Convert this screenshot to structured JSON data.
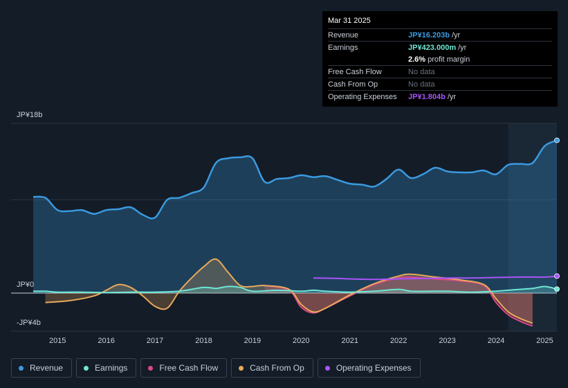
{
  "tooltip": {
    "date": "Mar 31 2025",
    "rows": [
      {
        "label": "Revenue",
        "value": "JP¥16.203b",
        "suffix": "/yr",
        "color": "#3a9ae0"
      },
      {
        "label": "Earnings",
        "value": "JP¥423.000m",
        "suffix": "/yr",
        "color": "#6ee7d4"
      },
      {
        "label": "profit_margin",
        "value": "2.6%",
        "suffix": "profit margin",
        "color": "#ffffff"
      },
      {
        "label": "Free Cash Flow",
        "value": "No data"
      },
      {
        "label": "Cash From Op",
        "value": "No data"
      },
      {
        "label": "Operating Expenses",
        "value": "JP¥1.804b",
        "suffix": "/yr",
        "color": "#a855f7"
      }
    ]
  },
  "legend": [
    {
      "label": "Revenue",
      "color": "#3a9ae0"
    },
    {
      "label": "Earnings",
      "color": "#6ee7d4"
    },
    {
      "label": "Free Cash Flow",
      "color": "#d94a84"
    },
    {
      "label": "Cash From Op",
      "color": "#e8a95c"
    },
    {
      "label": "Operating Expenses",
      "color": "#a855f7"
    }
  ],
  "chart_data": {
    "type": "area",
    "ylim": [
      -4,
      18
    ],
    "y_tick_labels": [
      {
        "label": "JP¥18b",
        "value": 18
      },
      {
        "label": "JP¥0",
        "value": 0
      },
      {
        "label": "-JP¥4b",
        "value": -4
      }
    ],
    "x_ticks": [
      "2015",
      "2016",
      "2017",
      "2018",
      "2019",
      "2020",
      "2021",
      "2022",
      "2023",
      "2024",
      "2025"
    ],
    "x_range": [
      2014.5,
      2025.25
    ],
    "highlight_start": 2024.25,
    "series": [
      {
        "name": "Revenue",
        "color": "#3a9ae0",
        "points": [
          [
            2014.5,
            10.2
          ],
          [
            2014.75,
            10.1
          ],
          [
            2015.0,
            8.8
          ],
          [
            2015.25,
            8.7
          ],
          [
            2015.5,
            8.8
          ],
          [
            2015.75,
            8.4
          ],
          [
            2016.0,
            8.8
          ],
          [
            2016.25,
            8.9
          ],
          [
            2016.5,
            9.1
          ],
          [
            2016.75,
            8.3
          ],
          [
            2017.0,
            8.0
          ],
          [
            2017.25,
            9.9
          ],
          [
            2017.5,
            10.1
          ],
          [
            2017.75,
            10.6
          ],
          [
            2018.0,
            11.2
          ],
          [
            2018.25,
            13.8
          ],
          [
            2018.5,
            14.3
          ],
          [
            2018.75,
            14.4
          ],
          [
            2019.0,
            14.3
          ],
          [
            2019.25,
            11.8
          ],
          [
            2019.5,
            12.1
          ],
          [
            2019.75,
            12.2
          ],
          [
            2020.0,
            12.5
          ],
          [
            2020.25,
            12.3
          ],
          [
            2020.5,
            12.4
          ],
          [
            2020.75,
            12.0
          ],
          [
            2021.0,
            11.6
          ],
          [
            2021.25,
            11.5
          ],
          [
            2021.5,
            11.3
          ],
          [
            2021.75,
            12.1
          ],
          [
            2022.0,
            13.1
          ],
          [
            2022.25,
            12.2
          ],
          [
            2022.5,
            12.6
          ],
          [
            2022.75,
            13.3
          ],
          [
            2023.0,
            12.9
          ],
          [
            2023.25,
            12.8
          ],
          [
            2023.5,
            12.8
          ],
          [
            2023.75,
            13.0
          ],
          [
            2024.0,
            12.6
          ],
          [
            2024.25,
            13.6
          ],
          [
            2024.5,
            13.7
          ],
          [
            2024.75,
            13.8
          ],
          [
            2025.0,
            15.6
          ],
          [
            2025.25,
            16.2
          ]
        ]
      },
      {
        "name": "Earnings",
        "color": "#6ee7d4",
        "points": [
          [
            2014.5,
            0.2
          ],
          [
            2014.75,
            0.2
          ],
          [
            2015.0,
            0.1
          ],
          [
            2015.5,
            0.1
          ],
          [
            2016.0,
            0.05
          ],
          [
            2016.5,
            0.1
          ],
          [
            2017.0,
            0.1
          ],
          [
            2017.5,
            0.2
          ],
          [
            2018.0,
            0.6
          ],
          [
            2018.25,
            0.5
          ],
          [
            2018.5,
            0.7
          ],
          [
            2018.75,
            0.6
          ],
          [
            2019.0,
            0.2
          ],
          [
            2019.5,
            0.3
          ],
          [
            2020.0,
            0.2
          ],
          [
            2020.25,
            0.3
          ],
          [
            2020.5,
            0.2
          ],
          [
            2021.0,
            0.1
          ],
          [
            2021.5,
            0.2
          ],
          [
            2022.0,
            0.4
          ],
          [
            2022.25,
            0.2
          ],
          [
            2022.75,
            0.2
          ],
          [
            2023.0,
            0.2
          ],
          [
            2023.5,
            0.1
          ],
          [
            2024.0,
            0.2
          ],
          [
            2024.25,
            0.3
          ],
          [
            2024.75,
            0.5
          ],
          [
            2025.0,
            0.7
          ],
          [
            2025.25,
            0.42
          ]
        ]
      },
      {
        "name": "Free Cash Flow",
        "color": "#d94a84",
        "points": [
          [
            2019.25,
            0.8
          ],
          [
            2019.75,
            0.3
          ],
          [
            2020.0,
            -1.5
          ],
          [
            2020.25,
            -2.1
          ],
          [
            2020.5,
            -1.6
          ],
          [
            2021.0,
            -0.3
          ],
          [
            2021.5,
            0.9
          ],
          [
            2022.0,
            1.6
          ],
          [
            2022.25,
            1.7
          ],
          [
            2022.75,
            1.5
          ],
          [
            2023.25,
            1.3
          ],
          [
            2023.75,
            0.8
          ],
          [
            2024.0,
            -1.0
          ],
          [
            2024.25,
            -2.3
          ],
          [
            2024.5,
            -3.0
          ],
          [
            2024.75,
            -3.5
          ]
        ]
      },
      {
        "name": "Cash From Op",
        "color": "#e8a95c",
        "points": [
          [
            2014.75,
            -1.0
          ],
          [
            2015.25,
            -0.8
          ],
          [
            2015.75,
            -0.3
          ],
          [
            2016.0,
            0.3
          ],
          [
            2016.25,
            0.9
          ],
          [
            2016.5,
            0.6
          ],
          [
            2016.75,
            -0.3
          ],
          [
            2017.0,
            -1.4
          ],
          [
            2017.25,
            -1.6
          ],
          [
            2017.5,
            0.2
          ],
          [
            2017.75,
            1.6
          ],
          [
            2018.0,
            2.8
          ],
          [
            2018.25,
            3.6
          ],
          [
            2018.5,
            2.2
          ],
          [
            2018.75,
            0.8
          ],
          [
            2019.0,
            0.7
          ],
          [
            2019.25,
            0.8
          ],
          [
            2019.75,
            0.4
          ],
          [
            2020.0,
            -1.2
          ],
          [
            2020.25,
            -2.0
          ],
          [
            2020.5,
            -1.6
          ],
          [
            2021.0,
            -0.2
          ],
          [
            2021.5,
            1.0
          ],
          [
            2022.0,
            1.8
          ],
          [
            2022.25,
            2.0
          ],
          [
            2022.75,
            1.7
          ],
          [
            2023.25,
            1.4
          ],
          [
            2023.75,
            0.9
          ],
          [
            2024.0,
            -0.6
          ],
          [
            2024.25,
            -2.0
          ],
          [
            2024.5,
            -2.7
          ],
          [
            2024.75,
            -3.2
          ]
        ]
      },
      {
        "name": "Operating Expenses",
        "color": "#a855f7",
        "points": [
          [
            2020.25,
            1.6
          ],
          [
            2020.75,
            1.55
          ],
          [
            2021.0,
            1.5
          ],
          [
            2021.5,
            1.45
          ],
          [
            2022.0,
            1.5
          ],
          [
            2022.5,
            1.55
          ],
          [
            2023.0,
            1.6
          ],
          [
            2023.5,
            1.6
          ],
          [
            2024.0,
            1.65
          ],
          [
            2024.5,
            1.7
          ],
          [
            2025.0,
            1.7
          ],
          [
            2025.25,
            1.8
          ]
        ]
      }
    ]
  }
}
